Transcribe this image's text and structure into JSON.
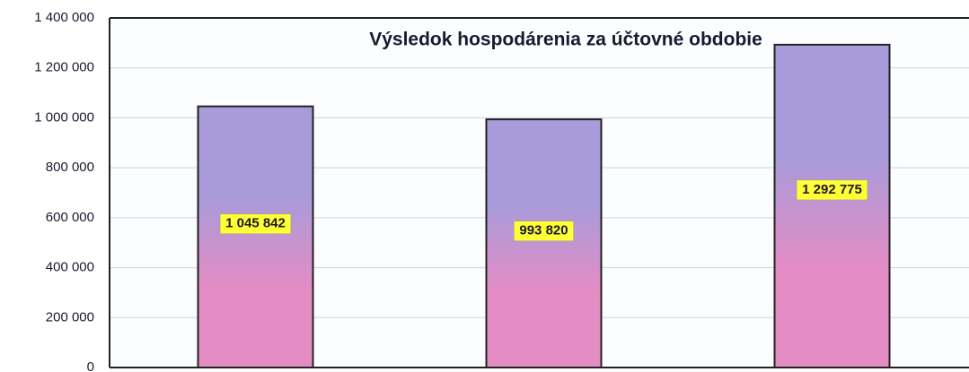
{
  "chart_data": {
    "type": "bar",
    "title": "Výsledok hospodárenia za účtovné obdobie",
    "categories": [
      null,
      null,
      null
    ],
    "values": [
      1045842,
      993820,
      1292775
    ],
    "value_labels": [
      "1 045 842",
      "993 820",
      "1 292 775"
    ],
    "gradient": [
      "#a99bd9",
      "#e48cc4"
    ],
    "label_color": "#ffff33",
    "ylim": [
      0,
      1400000
    ],
    "yticks": [
      0,
      {
        "value": 200000,
        "label": "200 000"
      },
      {
        "value": 400000,
        "label": "400 000"
      },
      {
        "value": 600000,
        "label": "600 000"
      },
      {
        "value": 800000,
        "label": "800 000"
      },
      {
        "value": 1000000,
        "label": "1 000 000"
      },
      {
        "value": 1200000,
        "label": "1 200 000"
      },
      {
        "value": 1400000,
        "label": "1 400 000"
      }
    ],
    "grid": true
  }
}
